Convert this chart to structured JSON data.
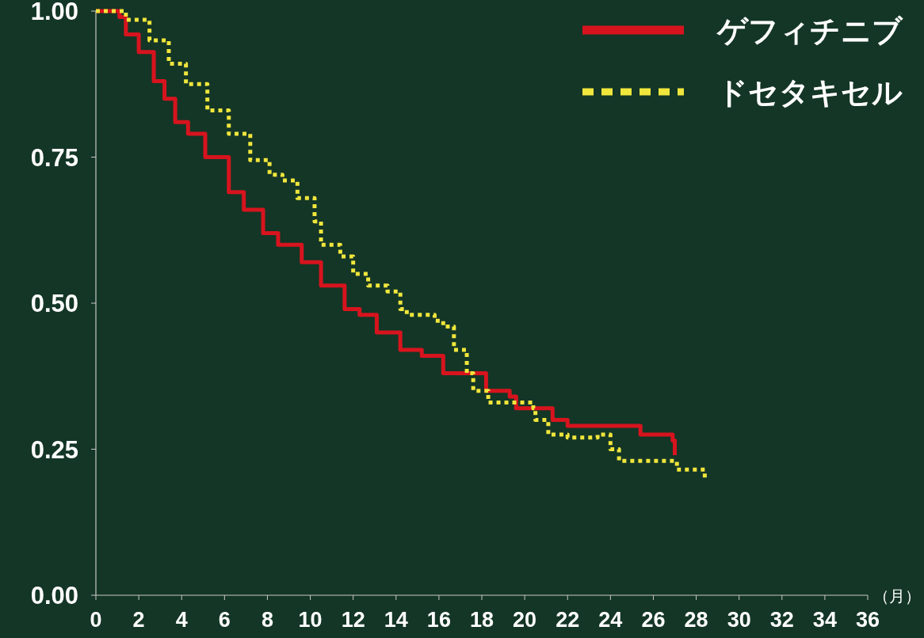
{
  "chart_data": {
    "type": "step",
    "xlabel": "（月）",
    "xlim": [
      0,
      36
    ],
    "xticks": [
      0,
      2,
      4,
      6,
      8,
      10,
      12,
      14,
      16,
      18,
      20,
      22,
      24,
      26,
      28,
      30,
      32,
      34,
      36
    ],
    "ylim": [
      0,
      1
    ],
    "yticks": [
      {
        "value": 0,
        "label": "0.00"
      },
      {
        "value": 0.25,
        "label": "0.25"
      },
      {
        "value": 0.5,
        "label": "0.50"
      },
      {
        "value": 0.75,
        "label": "0.75"
      },
      {
        "value": 1,
        "label": "1.00"
      }
    ],
    "grid": false,
    "legend": "top right",
    "series": [
      {
        "name": "ゲフィチニブ",
        "color": "#d7141e",
        "line_style": "solid",
        "x": [
          0,
          1.1,
          1.4,
          2.0,
          2.7,
          3.2,
          3.7,
          4.3,
          5.1,
          6.2,
          6.9,
          7.8,
          8.5,
          9.6,
          10.5,
          11.6,
          12.3,
          13.1,
          14.2,
          15.2,
          16.2,
          17.3,
          18.2,
          19.3,
          19.6,
          20.7,
          21.3,
          22.0,
          25.3,
          25.4,
          26.4,
          26.9,
          27.0
        ],
        "values": [
          1.0,
          0.99,
          0.96,
          0.93,
          0.88,
          0.85,
          0.81,
          0.79,
          0.75,
          0.69,
          0.66,
          0.62,
          0.6,
          0.57,
          0.53,
          0.49,
          0.48,
          0.45,
          0.42,
          0.41,
          0.38,
          0.38,
          0.35,
          0.34,
          0.32,
          0.32,
          0.3,
          0.29,
          0.29,
          0.275,
          0.275,
          0.265,
          0.24
        ]
      },
      {
        "name": "ドセタキセル",
        "color": "#f0e63c",
        "line_style": "dotted",
        "x": [
          0,
          0.7,
          1.4,
          2.5,
          3.4,
          4.2,
          5.2,
          6.2,
          7.2,
          8.1,
          8.7,
          9.4,
          10.2,
          10.5,
          11.4,
          12.0,
          12.7,
          13.6,
          14.2,
          14.5,
          15.8,
          16.2,
          16.7,
          17.3,
          17.6,
          18.3,
          20.4,
          20.5,
          21.1,
          22.0,
          23.4,
          24.0,
          24.4,
          26.5,
          27.1,
          28.4,
          28.4
        ],
        "values": [
          1.0,
          1.0,
          0.985,
          0.95,
          0.91,
          0.875,
          0.83,
          0.79,
          0.745,
          0.72,
          0.71,
          0.68,
          0.64,
          0.6,
          0.58,
          0.55,
          0.53,
          0.52,
          0.49,
          0.48,
          0.47,
          0.46,
          0.42,
          0.38,
          0.35,
          0.33,
          0.32,
          0.3,
          0.275,
          0.27,
          0.275,
          0.25,
          0.23,
          0.23,
          0.215,
          0.215,
          0.195
        ]
      }
    ]
  }
}
